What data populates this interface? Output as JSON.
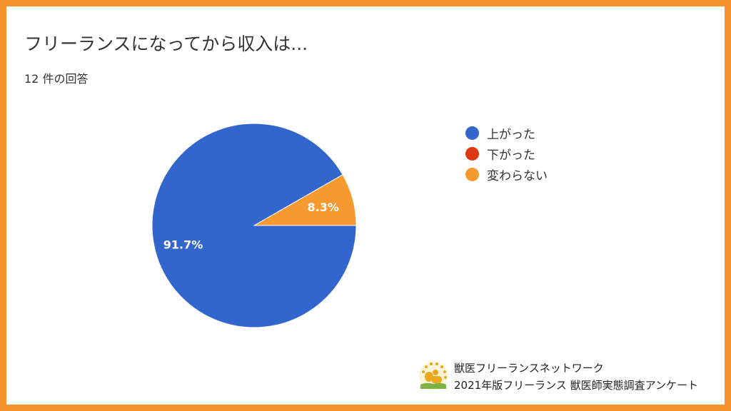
{
  "title": "フリーランスになってから収入は...",
  "response_count": "12 件の回答",
  "chart_data": {
    "type": "pie",
    "slices": [
      {
        "label": "上がった",
        "value": 91.7,
        "color": "#3366cc",
        "display": "91.7%"
      },
      {
        "label": "下がった",
        "value": 0,
        "color": "#dc3912",
        "display": ""
      },
      {
        "label": "変わらない",
        "value": 8.3,
        "color": "#f6992e",
        "display": "8.3%"
      }
    ],
    "legend_position": "right"
  },
  "footer": {
    "org": "獣医フリーランスネットワーク",
    "survey": "2021年版フリーランス 獣医師実態調査アンケート"
  },
  "colors": {
    "border": "#f6922e"
  }
}
